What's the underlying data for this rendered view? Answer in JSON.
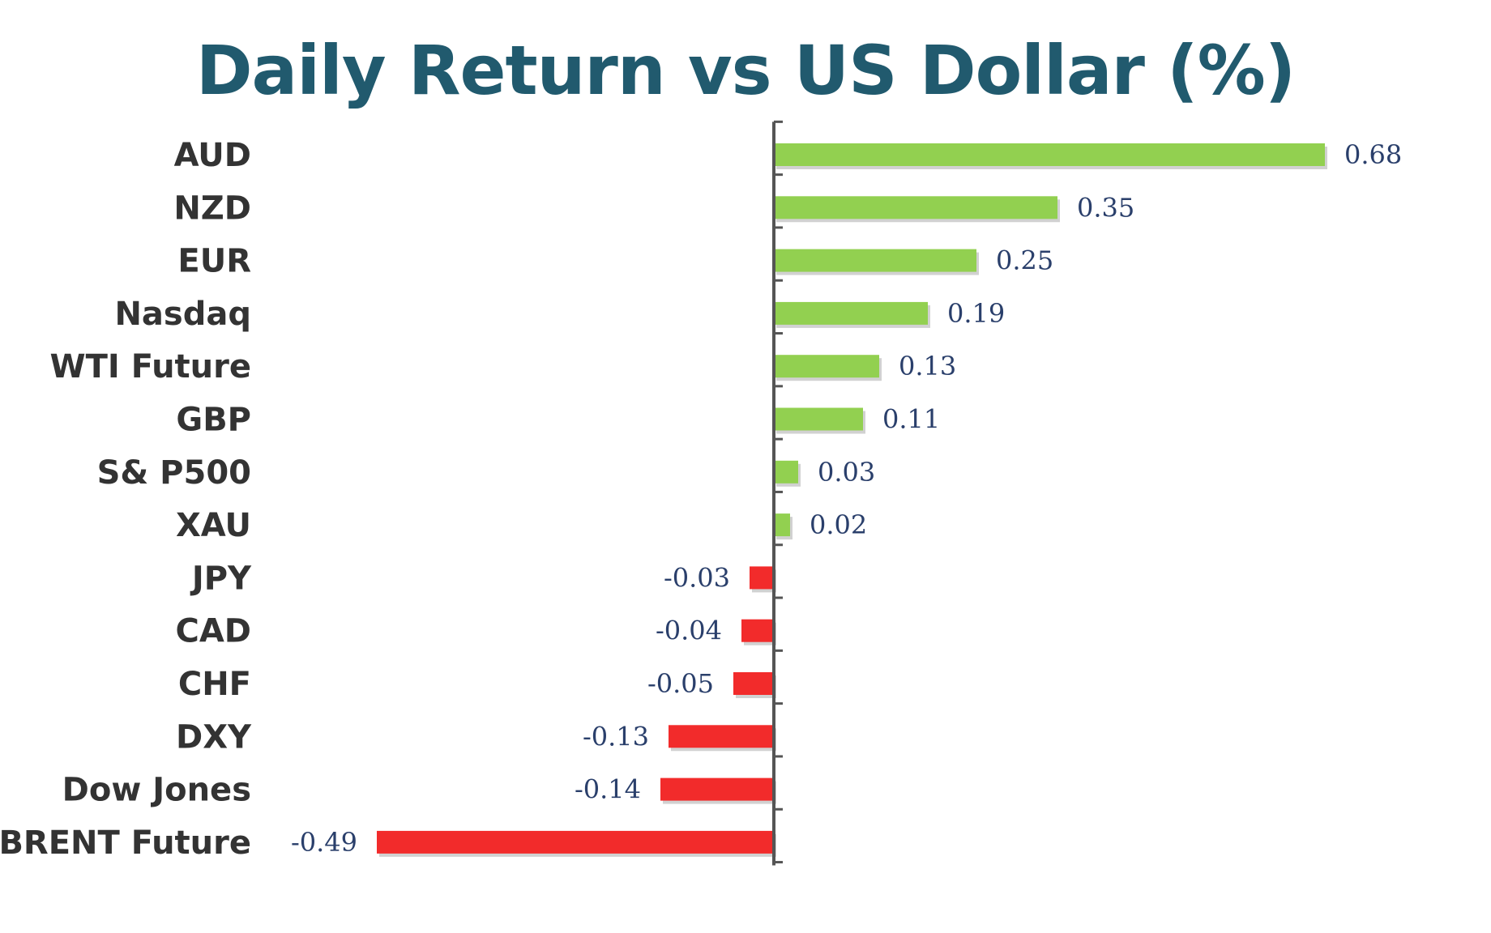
{
  "chart_data": {
    "type": "bar",
    "orientation": "horizontal",
    "title": "Daily Return vs US Dollar (%)",
    "categories": [
      "AUD",
      "NZD",
      "EUR",
      "Nasdaq",
      "WTI Future",
      "GBP",
      "S& P500",
      "XAU",
      "JPY",
      "CAD",
      "CHF",
      "DXY",
      "Dow Jones",
      "BRENT Future"
    ],
    "values": [
      0.68,
      0.35,
      0.25,
      0.19,
      0.13,
      0.11,
      0.03,
      0.02,
      -0.03,
      -0.04,
      -0.05,
      -0.13,
      -0.14,
      -0.49
    ],
    "value_labels": [
      "0.68",
      "0.35",
      "0.25",
      "0.19",
      "0.13",
      "0.11",
      "0.03",
      "0.02",
      "-0.03",
      "-0.04",
      "-0.05",
      "-0.13",
      "-0.14",
      "-0.49"
    ],
    "xlabel": "",
    "ylabel": "",
    "grid": false,
    "legend": "none",
    "colors": {
      "positive": "#92d050",
      "negative": "#f22b2b",
      "axis": "#555555",
      "title": "#215a6e"
    }
  }
}
